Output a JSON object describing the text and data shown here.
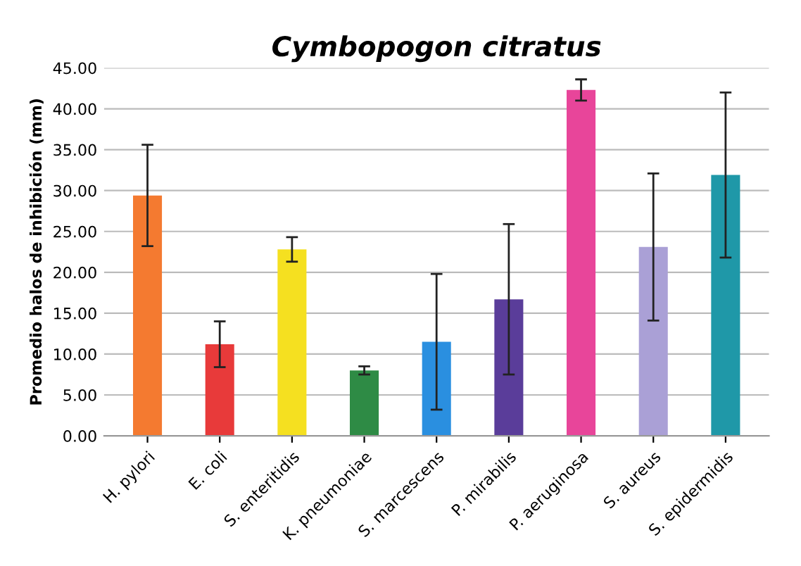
{
  "chart_data": {
    "type": "bar",
    "title": "Cymbopogon citratus",
    "ylabel": "Promedio halos de inhibición (mm)",
    "categories": [
      "H. pylori",
      "E. coli",
      "S. enteritidis",
      "K. pneumoniae",
      "S. marcescens",
      "P. mirabilis",
      "P. aeruginosa",
      "S. aureus",
      "S. epidermidis"
    ],
    "values": [
      29.4,
      11.2,
      22.8,
      8.0,
      11.5,
      16.7,
      42.3,
      23.1,
      31.9
    ],
    "errors": [
      6.2,
      2.8,
      1.5,
      0.5,
      8.3,
      9.2,
      1.3,
      9.0,
      10.1
    ],
    "colors": [
      "#f47a30",
      "#e83a3a",
      "#f5e020",
      "#2e8b45",
      "#2a8fe0",
      "#5a3d9a",
      "#e8459a",
      "#aaa0d6",
      "#1f98a8"
    ],
    "ylim": [
      0,
      45
    ],
    "yticks": [
      {
        "value": 0,
        "label": "0.00"
      },
      {
        "value": 5,
        "label": "5.00"
      },
      {
        "value": 10,
        "label": "10.00"
      },
      {
        "value": 15,
        "label": "15.00"
      },
      {
        "value": 20,
        "label": "20.00"
      },
      {
        "value": 25,
        "label": "25.00"
      },
      {
        "value": 30,
        "label": "30.00"
      },
      {
        "value": 35,
        "label": "35.00"
      },
      {
        "value": 40,
        "label": "40.00"
      },
      {
        "value": 45,
        "label": "45.00"
      }
    ],
    "grid": "y"
  }
}
